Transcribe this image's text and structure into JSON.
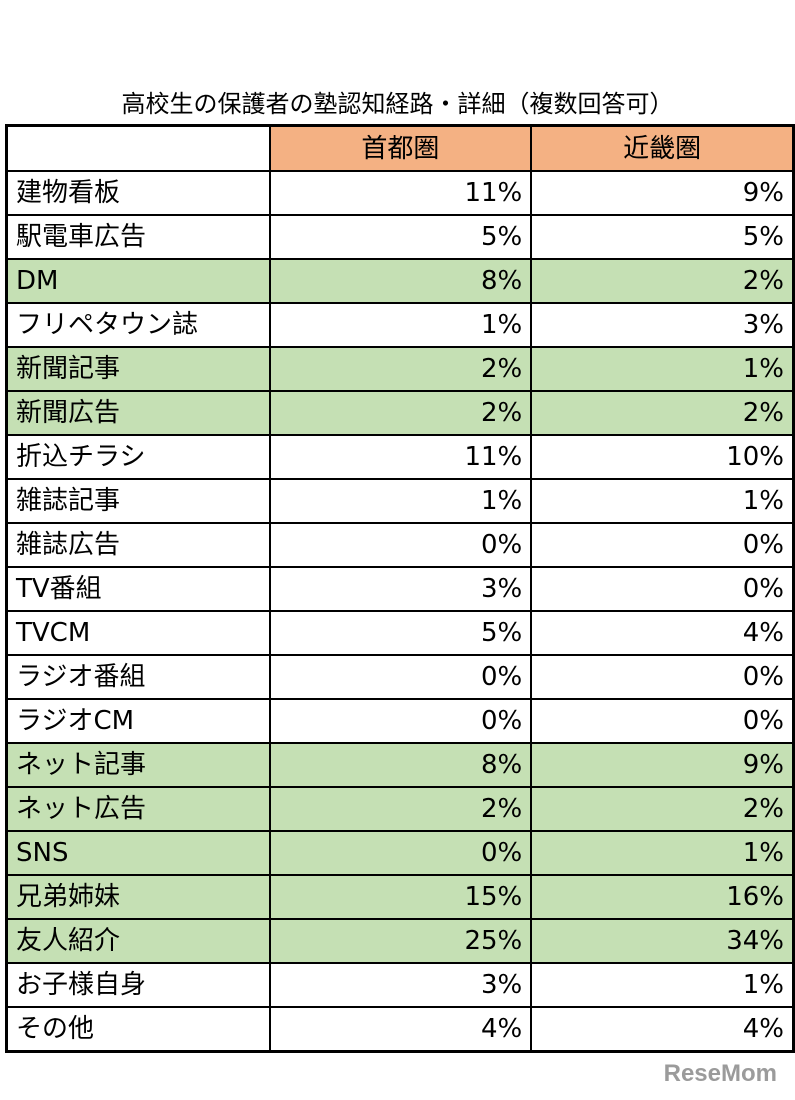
{
  "chart_data": {
    "type": "table",
    "title": "高校生の保護者の塾認知経路・詳細（複数回答可）",
    "columns": [
      "",
      "首都圏",
      "近畿圏"
    ],
    "rows": [
      {
        "label": "建物看板",
        "values": [
          "11%",
          "9%"
        ],
        "highlight": false
      },
      {
        "label": "駅電車広告",
        "values": [
          "5%",
          "5%"
        ],
        "highlight": false
      },
      {
        "label": "DM",
        "values": [
          "8%",
          "2%"
        ],
        "highlight": true
      },
      {
        "label": "フリペタウン誌",
        "values": [
          "1%",
          "3%"
        ],
        "highlight": false
      },
      {
        "label": "新聞記事",
        "values": [
          "2%",
          "1%"
        ],
        "highlight": true
      },
      {
        "label": "新聞広告",
        "values": [
          "2%",
          "2%"
        ],
        "highlight": true
      },
      {
        "label": "折込チラシ",
        "values": [
          "11%",
          "10%"
        ],
        "highlight": false
      },
      {
        "label": "雑誌記事",
        "values": [
          "1%",
          "1%"
        ],
        "highlight": false
      },
      {
        "label": "雑誌広告",
        "values": [
          "0%",
          "0%"
        ],
        "highlight": false
      },
      {
        "label": "TV番組",
        "values": [
          "3%",
          "0%"
        ],
        "highlight": false
      },
      {
        "label": "TVCM",
        "values": [
          "5%",
          "4%"
        ],
        "highlight": false
      },
      {
        "label": "ラジオ番組",
        "values": [
          "0%",
          "0%"
        ],
        "highlight": false
      },
      {
        "label": "ラジオCM",
        "values": [
          "0%",
          "0%"
        ],
        "highlight": false
      },
      {
        "label": "ネット記事",
        "values": [
          "8%",
          "9%"
        ],
        "highlight": true
      },
      {
        "label": "ネット広告",
        "values": [
          "2%",
          "2%"
        ],
        "highlight": true
      },
      {
        "label": "SNS",
        "values": [
          "0%",
          "1%"
        ],
        "highlight": true
      },
      {
        "label": "兄弟姉妹",
        "values": [
          "15%",
          "16%"
        ],
        "highlight": true
      },
      {
        "label": "友人紹介",
        "values": [
          "25%",
          "34%"
        ],
        "highlight": true
      },
      {
        "label": "お子様自身",
        "values": [
          "3%",
          "1%"
        ],
        "highlight": false
      },
      {
        "label": "その他",
        "values": [
          "4%",
          "4%"
        ],
        "highlight": false
      }
    ],
    "colors": {
      "header": "#f4b183",
      "highlight": "#c5e0b4"
    }
  },
  "watermark": "ReseMom"
}
